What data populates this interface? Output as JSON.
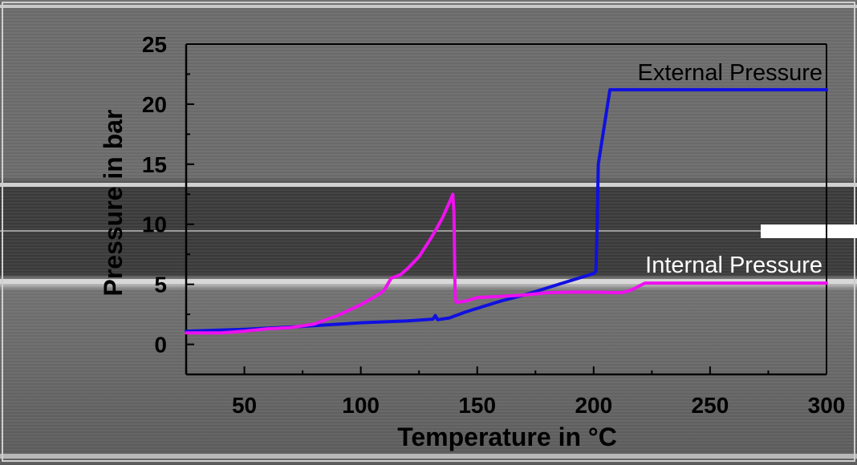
{
  "chart_data": {
    "type": "line",
    "title": "",
    "xlabel": "Temperature in °C",
    "ylabel": "Pressure in bar",
    "xlim": [
      25,
      300
    ],
    "ylim": [
      -2.5,
      25
    ],
    "x_ticks": [
      50,
      100,
      150,
      200,
      250,
      300
    ],
    "y_ticks": [
      0,
      5,
      10,
      15,
      20,
      25
    ],
    "grid": false,
    "legend": "inline labels",
    "series": [
      {
        "name": "External Pressure",
        "color": "#1010e0",
        "points": [
          [
            25,
            1.1
          ],
          [
            50,
            1.25
          ],
          [
            75,
            1.5
          ],
          [
            100,
            1.8
          ],
          [
            120,
            1.95
          ],
          [
            131,
            2.1
          ],
          [
            132,
            2.4
          ],
          [
            133,
            2.05
          ],
          [
            138,
            2.2
          ],
          [
            145,
            2.7
          ],
          [
            150,
            3.0
          ],
          [
            160,
            3.6
          ],
          [
            170,
            4.1
          ],
          [
            180,
            4.7
          ],
          [
            190,
            5.3
          ],
          [
            200,
            5.9
          ],
          [
            201,
            6.1
          ],
          [
            201.5,
            10.0
          ],
          [
            202,
            15.0
          ],
          [
            207,
            21.2
          ],
          [
            210,
            21.2
          ],
          [
            250,
            21.2
          ],
          [
            300,
            21.2
          ]
        ]
      },
      {
        "name": "Internal Pressure",
        "color": "#ee11ee",
        "points": [
          [
            25,
            0.95
          ],
          [
            40,
            0.95
          ],
          [
            50,
            1.1
          ],
          [
            60,
            1.3
          ],
          [
            70,
            1.4
          ],
          [
            80,
            1.7
          ],
          [
            90,
            2.4
          ],
          [
            100,
            3.3
          ],
          [
            108,
            4.2
          ],
          [
            110,
            4.5
          ],
          [
            113,
            5.5
          ],
          [
            117,
            5.8
          ],
          [
            120,
            6.3
          ],
          [
            125,
            7.3
          ],
          [
            130,
            8.8
          ],
          [
            133,
            9.8
          ],
          [
            135,
            10.5
          ],
          [
            138,
            11.8
          ],
          [
            139.5,
            12.5
          ],
          [
            140,
            11.0
          ],
          [
            140.5,
            4.0
          ],
          [
            141,
            3.5
          ],
          [
            145,
            3.6
          ],
          [
            150,
            3.9
          ],
          [
            160,
            4.0
          ],
          [
            170,
            4.1
          ],
          [
            180,
            4.3
          ],
          [
            190,
            4.35
          ],
          [
            200,
            4.35
          ],
          [
            212,
            4.3
          ],
          [
            216,
            4.5
          ],
          [
            222,
            5.1
          ],
          [
            230,
            5.1
          ],
          [
            250,
            5.1
          ],
          [
            300,
            5.1
          ]
        ]
      }
    ]
  }
}
